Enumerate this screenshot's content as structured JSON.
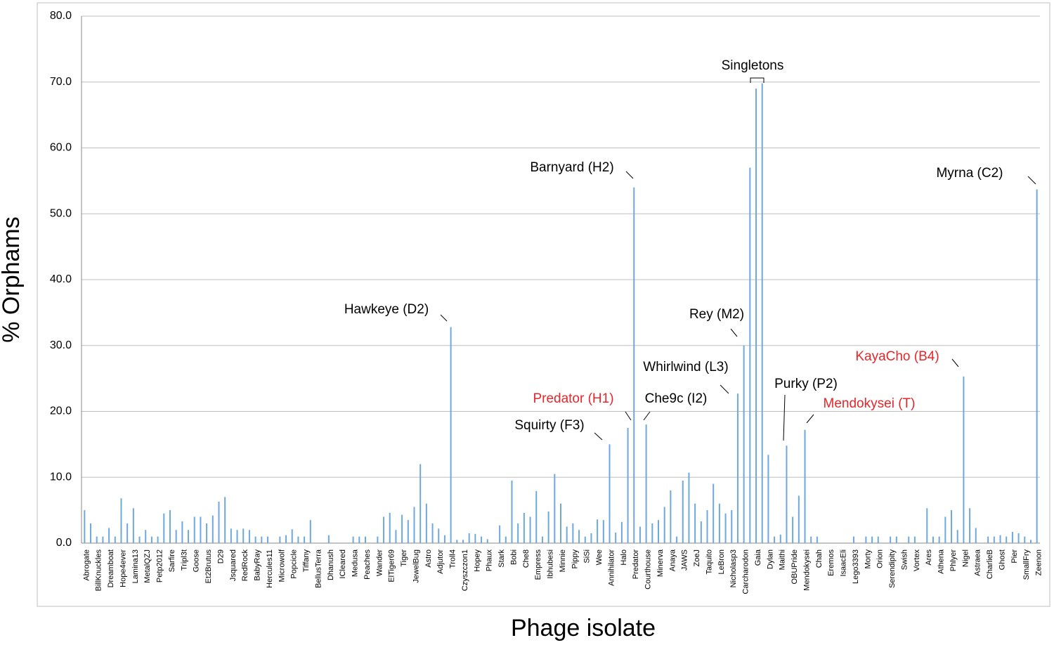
{
  "chart_data": {
    "type": "bar",
    "x_label": "Phage isolate",
    "y_label": "% Orphams",
    "color": "#6fa8dc",
    "grid": true,
    "ylim": [
      0,
      80
    ],
    "yticks": [
      {
        "value": 0,
        "label": "0.0"
      },
      {
        "value": 10,
        "label": "10.0"
      },
      {
        "value": 20,
        "label": "20.0"
      },
      {
        "value": 30,
        "label": "30.0"
      },
      {
        "value": 40,
        "label": "40.0"
      },
      {
        "value": 50,
        "label": "50.0"
      },
      {
        "value": 60,
        "label": "60.0"
      },
      {
        "value": 70,
        "label": "70.0"
      },
      {
        "value": 80,
        "label": "80.0"
      }
    ],
    "categories": [
      "Abrogate",
      null,
      "BillKnuckles",
      null,
      "Dreamboat",
      null,
      "Hope4ever",
      null,
      "Lamina13",
      null,
      "MetalQZJ",
      null,
      "Petp2012",
      null,
      "Sarfire",
      null,
      "Tripl3t",
      null,
      "Goose",
      null,
      "Et2Brutus",
      null,
      "D29",
      null,
      "Jsquared",
      null,
      "RedRock",
      null,
      "BabyRay",
      null,
      "Hercules11",
      null,
      "Microwolf",
      null,
      "Popcicle",
      null,
      "Tiffany",
      null,
      "BellusTerra",
      null,
      "Dhanush",
      null,
      "ICleared",
      null,
      "Medusa",
      null,
      "Peaches",
      null,
      "Wander",
      null,
      "ElTiger69",
      null,
      "Tiger",
      null,
      "JewelBug",
      null,
      "Astro",
      null,
      "Adjutor",
      null,
      "Troll4",
      null,
      "Czyszczon1",
      null,
      "Hopey",
      null,
      "Phaux",
      null,
      "Stark",
      null,
      "Bobi",
      null,
      "Che8",
      null,
      "Empress",
      null,
      "Ibhubesi",
      null,
      "Minnie",
      null,
      "Pippy",
      null,
      "SiSi",
      null,
      "Wee",
      null,
      "Annihilator",
      null,
      "Halo",
      null,
      "Predator",
      null,
      "Courthouse",
      null,
      "Minerva",
      null,
      "Anaya",
      null,
      "JAWS",
      null,
      "ZoeJ",
      null,
      "Taquito",
      null,
      "LeBron",
      null,
      "Nicholasp3",
      null,
      "Carcharodon",
      null,
      "Gaia",
      null,
      "Dylan",
      null,
      "Maithi",
      null,
      "OBUPride",
      null,
      "Mendokysei",
      null,
      "Chah",
      null,
      "Eremos",
      null,
      "IsaacEli",
      null,
      "Lego3393",
      null,
      "Morty",
      null,
      "Orion",
      null,
      "Serendipity",
      null,
      "Swish",
      null,
      "Vortex",
      null,
      "Ares",
      null,
      "Athena",
      null,
      "Phlyer",
      null,
      "Nigel",
      null,
      "Astraea",
      null,
      "CharlieB",
      null,
      "Ghost",
      null,
      "Pier",
      null,
      "SmallFry",
      null,
      "Zeenon"
    ],
    "values": [
      5,
      3,
      1,
      1,
      2.3,
      1,
      6.8,
      3,
      5.3,
      1,
      2,
      1,
      1,
      4.5,
      5,
      2,
      3.3,
      2,
      4,
      4,
      3,
      4.2,
      6.3,
      7,
      2.2,
      2,
      2.2,
      2,
      1,
      1,
      1,
      0,
      1,
      1.2,
      2.1,
      1,
      1,
      3.5,
      0,
      0,
      1.2,
      0,
      0,
      0,
      1,
      1,
      1,
      0,
      1,
      4,
      4.6,
      2,
      4.3,
      3.5,
      5.5,
      12,
      6,
      3,
      2.2,
      1.2,
      32.8,
      0.5,
      0.5,
      1.5,
      1.4,
      1,
      0.6,
      0,
      2.7,
      1,
      9.5,
      3,
      4.6,
      4,
      7.9,
      1,
      4.8,
      10.5,
      6,
      2.5,
      3,
      2,
      1,
      1.5,
      3.6,
      3.5,
      15,
      1.6,
      3.2,
      17.5,
      54,
      2.5,
      18,
      3,
      3.5,
      5.5,
      8,
      1,
      9.5,
      10.7,
      6,
      3.3,
      5,
      9,
      6,
      4.5,
      5,
      22.7,
      30,
      57,
      69,
      69.8,
      13.4,
      1,
      1.3,
      14.8,
      4,
      7.2,
      17.2,
      1,
      1,
      0,
      0,
      0,
      0,
      0,
      1,
      0,
      1,
      1,
      1,
      0,
      1,
      1,
      0,
      1,
      1,
      0,
      5.3,
      1,
      1,
      4,
      5,
      2,
      25.3,
      5.3,
      2.3,
      0,
      1,
      1,
      1.2,
      1,
      1.7,
      1.5,
      1,
      0.5,
      53.7
    ],
    "annotations": [
      {
        "text": "Hawkeye (D2)",
        "color": "#000000"
      },
      {
        "text": "Barnyard (H2)",
        "color": "#000000"
      },
      {
        "text": "Myrna (C2)",
        "color": "#000000"
      },
      {
        "text": "Singletons",
        "color": "#000000"
      },
      {
        "text": "Rey (M2)",
        "color": "#000000"
      },
      {
        "text": "Whirlwind (L3)",
        "color": "#000000"
      },
      {
        "text": "Predator (H1)",
        "color": "#e8262a"
      },
      {
        "text": "Che9c (I2)",
        "color": "#000000"
      },
      {
        "text": "Squirty (F3)",
        "color": "#000000"
      },
      {
        "text": "Purky (P2)",
        "color": "#000000"
      },
      {
        "text": "Mendokysei (T)",
        "color": "#e8262a"
      },
      {
        "text": "KayaCho (B4)",
        "color": "#e8262a"
      }
    ]
  }
}
